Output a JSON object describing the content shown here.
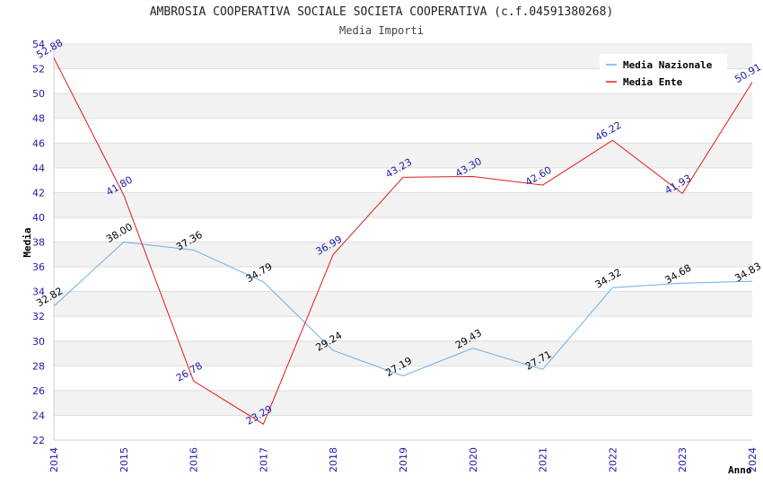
{
  "chart_data": {
    "type": "line",
    "title": "AMBROSIA COOPERATIVA SOCIALE SOCIETA COOPERATIVA (c.f.04591380268)",
    "subtitle": "Media Importi",
    "xlabel": "Anno",
    "ylabel": "Media",
    "x": [
      "2014",
      "2015",
      "2016",
      "2017",
      "2018",
      "2019",
      "2020",
      "2021",
      "2022",
      "2023",
      "2024"
    ],
    "ylim": [
      22,
      54
    ],
    "yticks": [
      "22",
      "24",
      "26",
      "28",
      "30",
      "32",
      "34",
      "36",
      "38",
      "40",
      "42",
      "44",
      "46",
      "48",
      "50",
      "52",
      "54"
    ],
    "grid": true,
    "legend_position": "top-right",
    "series": [
      {
        "name": "Media Nazionale",
        "color": "#6aaee6",
        "values": [
          32.82,
          38.0,
          37.36,
          34.79,
          29.24,
          27.19,
          29.43,
          27.71,
          34.32,
          34.68,
          34.83
        ],
        "labels": [
          "32.82",
          "38.00",
          "37.36",
          "34.79",
          "29.24",
          "27.19",
          "29.43",
          "27.71",
          "34.32",
          "34.68",
          "34.83"
        ]
      },
      {
        "name": "Media Ente",
        "color": "#e31a1c",
        "values": [
          52.88,
          41.8,
          26.78,
          23.29,
          36.99,
          43.23,
          43.3,
          42.6,
          46.22,
          41.93,
          50.91
        ],
        "labels": [
          "52.88",
          "41.80",
          "26.78",
          "23.29",
          "36.99",
          "43.23",
          "43.30",
          "42.60",
          "46.22",
          "41.93",
          "50.91"
        ]
      }
    ]
  }
}
